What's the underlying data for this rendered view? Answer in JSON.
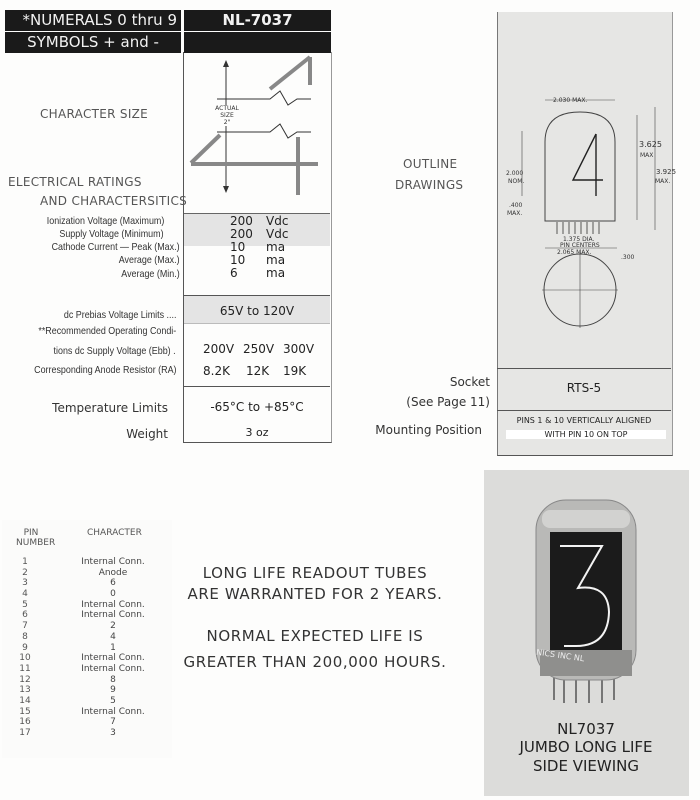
{
  "header": {
    "left_line1": "*NUMERALS 0 thru 9",
    "left_line2": "SYMBOLS + and -",
    "model": "NL-7037"
  },
  "character_size": {
    "label": "CHARACTER SIZE",
    "actual_size_line1": "ACTUAL",
    "actual_size_line2": "SIZE",
    "actual_size_line3": "2\"",
    "digit": "4"
  },
  "electrical": {
    "heading_line1": "ELECTRICAL RATINGS",
    "heading_line2": "AND CHARACTERSITICS",
    "rows": [
      {
        "label": "Ionization Voltage (Maximum)",
        "value": "200",
        "unit": "Vdc"
      },
      {
        "label": "Supply Voltage (Minimum)",
        "value": "200",
        "unit": "Vdc"
      },
      {
        "label": "Cathode Current — Peak (Max.)",
        "value": "10",
        "unit": "ma"
      },
      {
        "label": "Average (Max.)",
        "value": "10",
        "unit": "ma"
      },
      {
        "label": "Average (Min.)",
        "value": "6",
        "unit": "ma"
      }
    ]
  },
  "prebias": {
    "label": "dc Prebias Voltage Limits ....",
    "value": "65V to 120V"
  },
  "operating": {
    "label_line1": "**Recommended Operating Condi-",
    "label_line2": "tions dc Supply Voltage (Ebb) .",
    "supply": [
      "200V",
      "250V",
      "300V"
    ],
    "resistor_label": "Corresponding Anode Resistor (RA)",
    "resistors": [
      "8.2K",
      "12K",
      "19K"
    ]
  },
  "temperature": {
    "label": "Temperature Limits",
    "value": "-65°C to +85°C"
  },
  "weight": {
    "label": "Weight",
    "value": "3 oz"
  },
  "outline": {
    "label_line1": "OUTLINE",
    "label_line2": "DRAWINGS",
    "digit": "4",
    "dims": {
      "top_width": "2.030 MAX.",
      "height_body": "3.625",
      "height_body_max": "MAX",
      "height_total": "3.925",
      "height_total_max": "MAX.",
      "char_height": "2.000",
      "char_nom": "NOM.",
      "base": ".400",
      "base_max": "MAX.",
      "pin_dia": "1.375 DIA.",
      "pin_centers": "PIN CENTERS",
      "bottom_width": "2.065 MAX.",
      "pin_len": ".300"
    }
  },
  "socket": {
    "label": "Socket",
    "ref": "(See Page 11)",
    "value": "RTS-5"
  },
  "mounting": {
    "label": "Mounting Position",
    "value_line1": "PINS 1 & 10 VERTICALLY ALIGNED",
    "value_line2": "WITH PIN 10 ON TOP"
  },
  "pin_table": {
    "header_pin_line1": "PIN",
    "header_pin_line2": "NUMBER",
    "header_character": "CHARACTER",
    "rows": [
      [
        "1",
        "Internal Conn."
      ],
      [
        "2",
        "Anode"
      ],
      [
        "3",
        "6"
      ],
      [
        "4",
        "0"
      ],
      [
        "5",
        "Internal Conn."
      ],
      [
        "6",
        "Internal Conn."
      ],
      [
        "7",
        "2"
      ],
      [
        "8",
        "4"
      ],
      [
        "9",
        "1"
      ],
      [
        "10",
        "Internal Conn."
      ],
      [
        "11",
        "Internal Conn."
      ],
      [
        "12",
        "8"
      ],
      [
        "13",
        "9"
      ],
      [
        "14",
        "5"
      ],
      [
        "15",
        "Internal Conn."
      ],
      [
        "16",
        "7"
      ],
      [
        "17",
        "3"
      ]
    ]
  },
  "warranty": {
    "line1": "LONG LIFE READOUT TUBES",
    "line2": "ARE WARRANTED FOR 2 YEARS.",
    "line3": "NORMAL EXPECTED LIFE IS",
    "line4": "GREATER THAN 200,000 HOURS."
  },
  "photo": {
    "digit": "3",
    "tube_text": "NICS INC  NL",
    "caption_line1": "NL7037",
    "caption_line2": "JUMBO LONG LIFE",
    "caption_line3": "SIDE VIEWING"
  }
}
